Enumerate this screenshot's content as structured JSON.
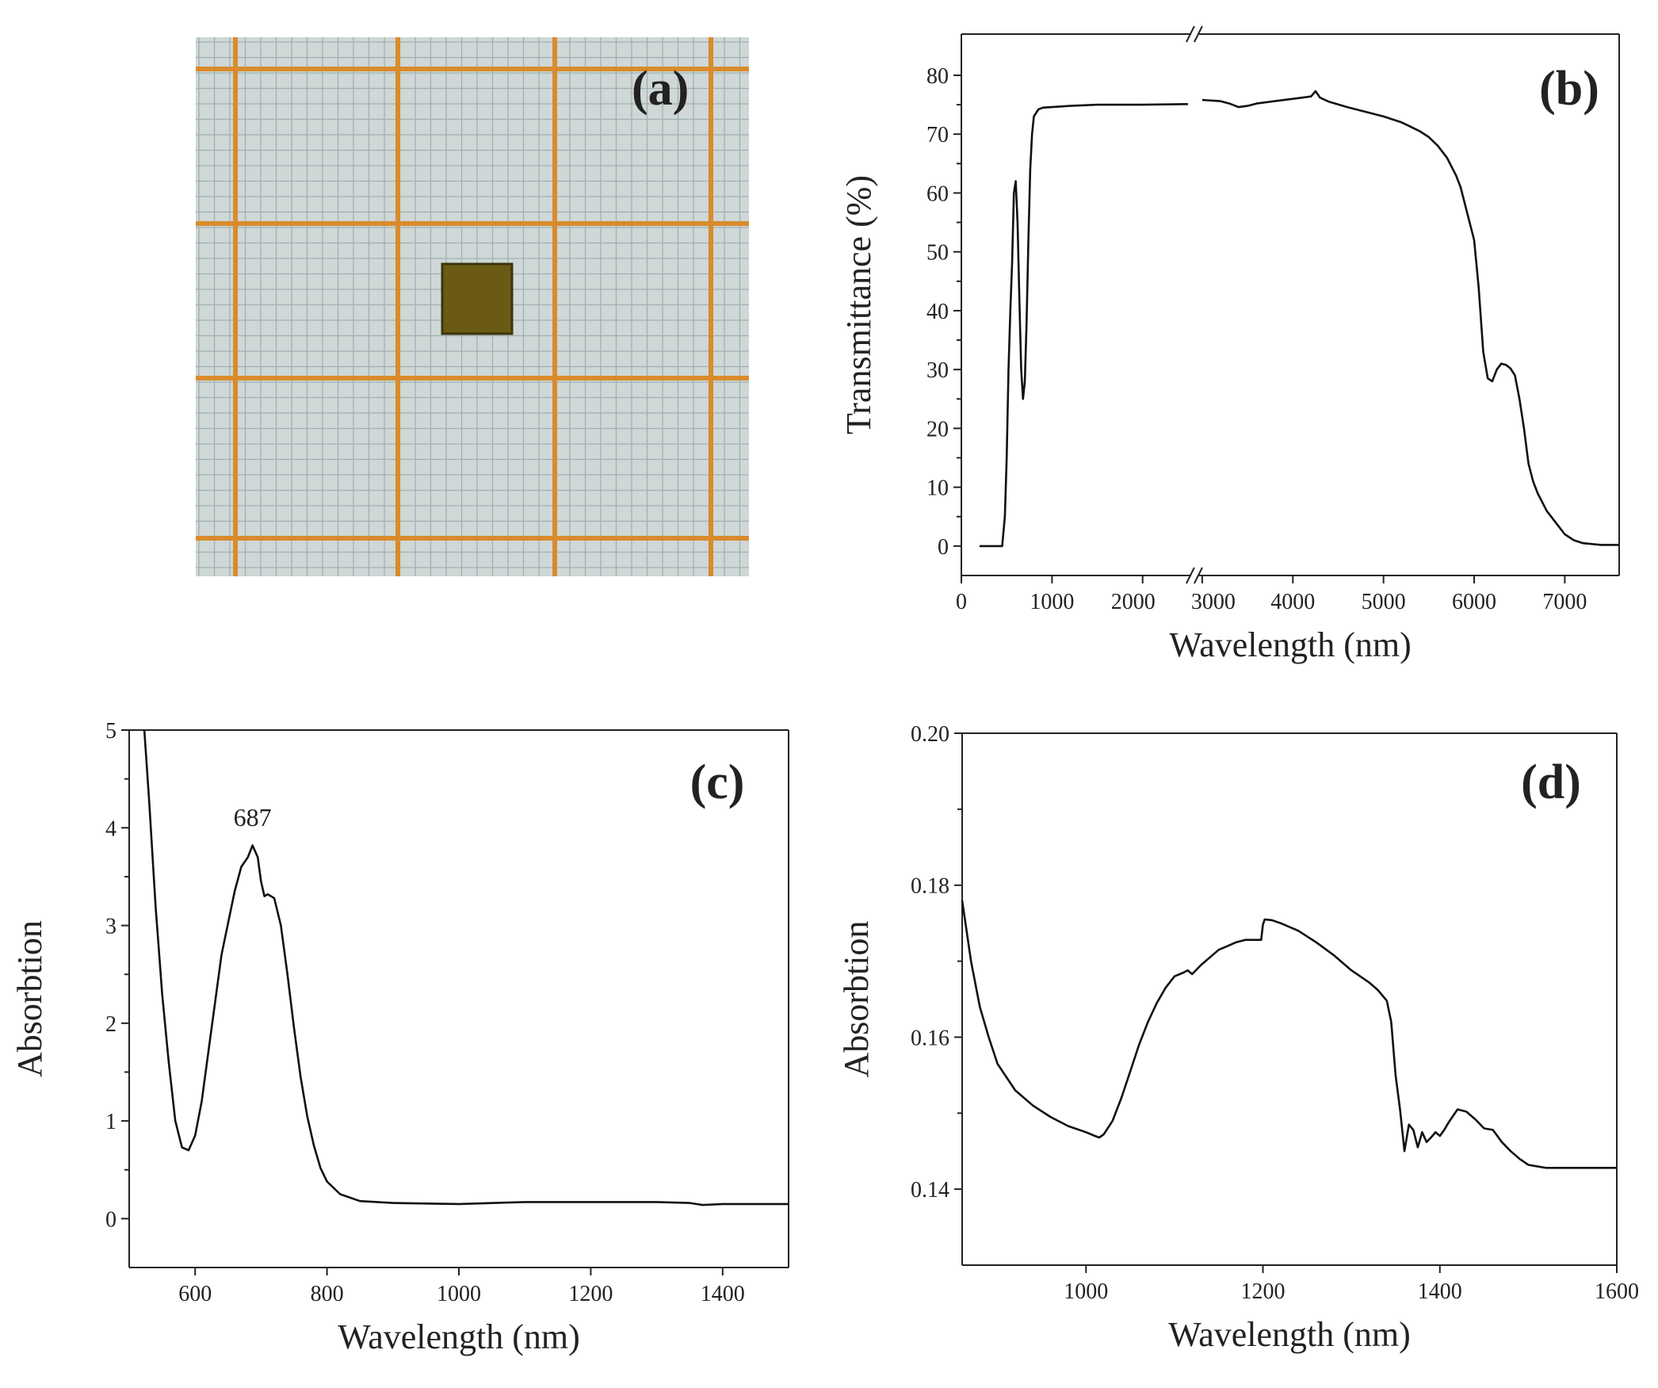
{
  "chart_data": [
    {
      "panel": "a",
      "type": "photo",
      "panel_label": "(a)",
      "colors": {
        "paper": "#cfd8d6",
        "major_grid": "#d98b2c",
        "minor_grid": "#9fb0b3",
        "sample": "#6b5a14"
      }
    },
    {
      "panel": "b",
      "type": "line",
      "panel_label": "(b)",
      "xlabel": "Wavelength (nm)",
      "ylabel": "Transmittance (%)",
      "xlim": [
        0,
        7600
      ],
      "ylim": [
        -5,
        87
      ],
      "axis_break": [
        2500,
        3000
      ],
      "xticks": [
        0,
        1000,
        2000,
        3000,
        4000,
        5000,
        6000,
        7000
      ],
      "yticks": [
        0,
        10,
        20,
        30,
        40,
        50,
        60,
        70,
        80
      ],
      "grid": false,
      "series": [
        {
          "x": [
            200,
            450,
            480,
            500,
            520,
            540,
            560,
            580,
            600,
            620,
            640,
            660,
            680,
            700,
            720,
            740,
            760,
            780,
            800,
            850,
            900,
            1000,
            1200,
            1500,
            2000,
            2500,
            3000,
            3200,
            3300,
            3400,
            3500,
            3600,
            3800,
            4000,
            4100,
            4200,
            4250,
            4300,
            4400,
            4600,
            4800,
            5000,
            5200,
            5400,
            5500,
            5600,
            5700,
            5800,
            5850,
            5900,
            5950,
            6000,
            6050,
            6100,
            6150,
            6200,
            6250,
            6300,
            6350,
            6400,
            6450,
            6500,
            6550,
            6600,
            6650,
            6700,
            6800,
            6900,
            7000,
            7100,
            7200,
            7400,
            7600
          ],
          "y": [
            0,
            0,
            5,
            15,
            30,
            40,
            48,
            60,
            62,
            55,
            42,
            30,
            25,
            28,
            38,
            52,
            64,
            70,
            73,
            74.2,
            74.5,
            74.6,
            74.8,
            75.0,
            75.0,
            75.1,
            75.8,
            75.6,
            75.2,
            74.6,
            74.8,
            75.2,
            75.6,
            76.0,
            76.2,
            76.4,
            77.3,
            76.2,
            75.5,
            74.6,
            73.8,
            73.0,
            72.0,
            70.5,
            69.5,
            68.0,
            66.0,
            63.0,
            61.0,
            58.0,
            55.0,
            52.0,
            44.0,
            33.0,
            28.5,
            28.0,
            30.0,
            31.0,
            30.8,
            30.2,
            29.0,
            25.0,
            20.0,
            14.0,
            11.0,
            9.0,
            6.0,
            4.0,
            2.0,
            1.0,
            0.5,
            0.2,
            0.2
          ]
        }
      ]
    },
    {
      "panel": "c",
      "type": "line",
      "panel_label": "(c)",
      "xlabel": "Wavelength (nm)",
      "ylabel": "Absorbtion",
      "xlim": [
        500,
        1500
      ],
      "ylim": [
        -0.5,
        5
      ],
      "xticks": [
        600,
        800,
        1000,
        1200,
        1400
      ],
      "yticks": [
        0,
        1,
        2,
        3,
        4,
        5
      ],
      "grid": false,
      "annotations": [
        {
          "text": "687",
          "x": 687,
          "y": 3.92
        }
      ],
      "series": [
        {
          "x": [
            523,
            530,
            540,
            550,
            560,
            570,
            580,
            590,
            600,
            610,
            620,
            640,
            660,
            670,
            680,
            687,
            695,
            700,
            705,
            710,
            720,
            730,
            740,
            750,
            760,
            770,
            780,
            790,
            800,
            820,
            850,
            900,
            1000,
            1100,
            1200,
            1300,
            1350,
            1370,
            1400,
            1500
          ],
          "y": [
            5.0,
            4.3,
            3.2,
            2.3,
            1.6,
            1.0,
            0.73,
            0.7,
            0.85,
            1.2,
            1.7,
            2.7,
            3.35,
            3.6,
            3.7,
            3.82,
            3.7,
            3.45,
            3.3,
            3.32,
            3.28,
            3.0,
            2.5,
            1.95,
            1.45,
            1.05,
            0.75,
            0.52,
            0.38,
            0.25,
            0.18,
            0.16,
            0.15,
            0.17,
            0.17,
            0.17,
            0.16,
            0.14,
            0.15,
            0.15
          ]
        }
      ]
    },
    {
      "panel": "d",
      "type": "line",
      "panel_label": "(d)",
      "xlabel": "Wavelength (nm)",
      "ylabel": "Absorbtion",
      "xlim": [
        860,
        1600
      ],
      "ylim": [
        0.13,
        0.2
      ],
      "xticks": [
        1000,
        1200,
        1400,
        1600
      ],
      "yticks": [
        0.14,
        0.16,
        0.18,
        0.2
      ],
      "ytick_labels": [
        "0.14",
        "0.16",
        "0.18",
        "0.20"
      ],
      "grid": false,
      "series": [
        {
          "x": [
            860,
            870,
            880,
            890,
            900,
            920,
            940,
            960,
            980,
            1000,
            1010,
            1015,
            1020,
            1030,
            1040,
            1050,
            1060,
            1070,
            1080,
            1090,
            1100,
            1110,
            1115,
            1120,
            1130,
            1140,
            1150,
            1160,
            1170,
            1180,
            1190,
            1198,
            1200,
            1202,
            1210,
            1220,
            1240,
            1260,
            1280,
            1300,
            1310,
            1320,
            1330,
            1340,
            1345,
            1350,
            1355,
            1360,
            1365,
            1370,
            1375,
            1380,
            1385,
            1390,
            1395,
            1400,
            1405,
            1410,
            1420,
            1430,
            1440,
            1450,
            1460,
            1470,
            1480,
            1490,
            1500,
            1520,
            1550,
            1600
          ],
          "y": [
            0.178,
            0.17,
            0.164,
            0.16,
            0.1565,
            0.153,
            0.151,
            0.1495,
            0.1483,
            0.1475,
            0.147,
            0.1468,
            0.1472,
            0.149,
            0.152,
            0.1555,
            0.159,
            0.162,
            0.1645,
            0.1665,
            0.168,
            0.1685,
            0.1688,
            0.1683,
            0.1695,
            0.1705,
            0.1715,
            0.172,
            0.1725,
            0.1728,
            0.1728,
            0.1728,
            0.1748,
            0.1755,
            0.1754,
            0.175,
            0.174,
            0.1725,
            0.1708,
            0.1688,
            0.168,
            0.1672,
            0.1662,
            0.1648,
            0.162,
            0.155,
            0.1505,
            0.145,
            0.1485,
            0.1478,
            0.1455,
            0.1475,
            0.1462,
            0.1468,
            0.1475,
            0.147,
            0.1478,
            0.1488,
            0.1505,
            0.1502,
            0.1492,
            0.148,
            0.1478,
            0.1462,
            0.145,
            0.144,
            0.1432,
            0.1428,
            0.1428,
            0.1428
          ]
        }
      ]
    }
  ]
}
